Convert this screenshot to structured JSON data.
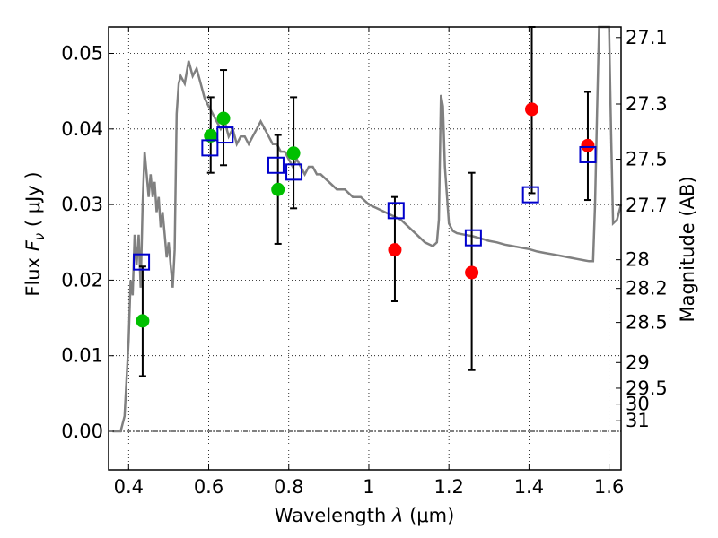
{
  "chart_data": {
    "type": "scatter",
    "xlabel_prefix": "Wavelength  ",
    "xlabel_symbol": "λ",
    "xlabel_unit_open": " (",
    "xlabel_unit": "μm",
    "xlabel_unit_close": ")",
    "ylabel_prefix": "Flux  ",
    "ylabel_symbol": "F",
    "ylabel_subscript": "ν",
    "ylabel_unit": "  ( μJy )",
    "y2label": "Magnitude (AB)",
    "xlim": [
      0.35,
      1.63
    ],
    "ylim": [
      -0.0051,
      0.0535
    ],
    "xticks": [
      0.4,
      0.6,
      0.8,
      1.0,
      1.2,
      1.4,
      1.6
    ],
    "xtick_labels": [
      "0.4",
      "0.6",
      "0.8",
      "1",
      "1.2",
      "1.4",
      "1.6"
    ],
    "yticks": [
      0.0,
      0.01,
      0.02,
      0.03,
      0.04,
      0.05
    ],
    "ytick_labels": [
      "0.00",
      "0.01",
      "0.02",
      "0.03",
      "0.04",
      "0.05"
    ],
    "y2ticks": [
      {
        "label": "27.1",
        "flux": 0.0521
      },
      {
        "label": "27.3",
        "flux": 0.0433
      },
      {
        "label": "27.5",
        "flux": 0.036
      },
      {
        "label": "27.7",
        "flux": 0.0299
      },
      {
        "label": "28",
        "flux": 0.0227
      },
      {
        "label": "28.2",
        "flux": 0.0189
      },
      {
        "label": "28.5",
        "flux": 0.0144
      },
      {
        "label": "29",
        "flux": 0.0091
      },
      {
        "label": "29.5",
        "flux": 0.0057
      },
      {
        "label": "30",
        "flux": 0.0036
      },
      {
        "label": "31",
        "flux": 0.0014
      }
    ],
    "grid": true,
    "colors": {
      "model": "#808080",
      "green": "#00c000",
      "red": "#ff0000",
      "box": "#0000cc",
      "errorbar": "#000000"
    },
    "model_sed": {
      "x": [
        0.36,
        0.38,
        0.39,
        0.4,
        0.405,
        0.41,
        0.415,
        0.42,
        0.425,
        0.43,
        0.435,
        0.44,
        0.445,
        0.45,
        0.455,
        0.46,
        0.465,
        0.47,
        0.475,
        0.48,
        0.485,
        0.49,
        0.495,
        0.5,
        0.505,
        0.51,
        0.515,
        0.52,
        0.525,
        0.53,
        0.54,
        0.55,
        0.56,
        0.57,
        0.58,
        0.59,
        0.6,
        0.61,
        0.62,
        0.63,
        0.64,
        0.65,
        0.66,
        0.67,
        0.68,
        0.69,
        0.7,
        0.71,
        0.72,
        0.73,
        0.74,
        0.75,
        0.76,
        0.77,
        0.78,
        0.79,
        0.8,
        0.81,
        0.82,
        0.83,
        0.84,
        0.85,
        0.86,
        0.87,
        0.88,
        0.9,
        0.92,
        0.94,
        0.96,
        0.98,
        1.0,
        1.02,
        1.04,
        1.06,
        1.08,
        1.1,
        1.12,
        1.14,
        1.16,
        1.17,
        1.175,
        1.18,
        1.185,
        1.19,
        1.2,
        1.21,
        1.22,
        1.24,
        1.26,
        1.28,
        1.3,
        1.32,
        1.34,
        1.36,
        1.38,
        1.4,
        1.42,
        1.44,
        1.46,
        1.48,
        1.5,
        1.52,
        1.54,
        1.55,
        1.56,
        1.565,
        1.57,
        1.575,
        1.58,
        1.59,
        1.6,
        1.605,
        1.61,
        1.62,
        1.63
      ],
      "y": [
        0.0,
        0.0,
        0.002,
        0.012,
        0.02,
        0.018,
        0.026,
        0.022,
        0.026,
        0.019,
        0.03,
        0.037,
        0.034,
        0.031,
        0.034,
        0.031,
        0.033,
        0.029,
        0.031,
        0.027,
        0.029,
        0.026,
        0.023,
        0.025,
        0.022,
        0.019,
        0.024,
        0.042,
        0.046,
        0.047,
        0.046,
        0.049,
        0.047,
        0.048,
        0.046,
        0.044,
        0.043,
        0.042,
        0.041,
        0.04,
        0.041,
        0.039,
        0.04,
        0.038,
        0.039,
        0.039,
        0.038,
        0.039,
        0.04,
        0.041,
        0.04,
        0.039,
        0.038,
        0.038,
        0.037,
        0.037,
        0.036,
        0.035,
        0.036,
        0.035,
        0.034,
        0.035,
        0.035,
        0.034,
        0.034,
        0.033,
        0.032,
        0.032,
        0.031,
        0.031,
        0.03,
        0.0295,
        0.029,
        0.0285,
        0.028,
        0.027,
        0.026,
        0.025,
        0.0245,
        0.025,
        0.028,
        0.0445,
        0.043,
        0.035,
        0.0275,
        0.0265,
        0.0262,
        0.026,
        0.0258,
        0.0255,
        0.0252,
        0.025,
        0.0247,
        0.0245,
        0.0243,
        0.0241,
        0.0238,
        0.0236,
        0.0234,
        0.0232,
        0.023,
        0.0228,
        0.0226,
        0.0225,
        0.0225,
        0.03,
        0.042,
        0.055,
        0.056,
        0.056,
        0.056,
        0.04,
        0.0275,
        0.028,
        0.03
      ]
    },
    "green_points": [
      {
        "x": 0.435,
        "y": 0.0146
      },
      {
        "x": 0.605,
        "y": 0.0391
      },
      {
        "x": 0.637,
        "y": 0.0414
      },
      {
        "x": 0.773,
        "y": 0.032
      },
      {
        "x": 0.812,
        "y": 0.0368
      }
    ],
    "red_points": [
      {
        "x": 1.065,
        "y": 0.024
      },
      {
        "x": 1.257,
        "y": 0.021
      },
      {
        "x": 1.407,
        "y": 0.0426
      },
      {
        "x": 1.547,
        "y": 0.0378
      }
    ],
    "model_boxes": [
      {
        "x": 0.432,
        "y": 0.0224
      },
      {
        "x": 0.603,
        "y": 0.0375
      },
      {
        "x": 0.641,
        "y": 0.0392
      },
      {
        "x": 0.768,
        "y": 0.0352
      },
      {
        "x": 0.813,
        "y": 0.0343
      },
      {
        "x": 1.068,
        "y": 0.0292
      },
      {
        "x": 1.261,
        "y": 0.0256
      },
      {
        "x": 1.404,
        "y": 0.0313
      },
      {
        "x": 1.547,
        "y": 0.0366
      }
    ],
    "error_bars": [
      {
        "x": 0.435,
        "y_low": 0.0073,
        "y_high": 0.0218
      },
      {
        "x": 0.605,
        "y_low": 0.0342,
        "y_high": 0.0442
      },
      {
        "x": 0.637,
        "y_low": 0.0352,
        "y_high": 0.0478
      },
      {
        "x": 0.773,
        "y_low": 0.0248,
        "y_high": 0.0392
      },
      {
        "x": 0.812,
        "y_low": 0.0295,
        "y_high": 0.0442
      },
      {
        "x": 1.065,
        "y_low": 0.0172,
        "y_high": 0.031
      },
      {
        "x": 1.257,
        "y_low": 0.0081,
        "y_high": 0.0342
      },
      {
        "x": 1.407,
        "y_low": 0.0315,
        "y_high": 0.0535
      },
      {
        "x": 1.547,
        "y_low": 0.0306,
        "y_high": 0.0449
      }
    ]
  }
}
